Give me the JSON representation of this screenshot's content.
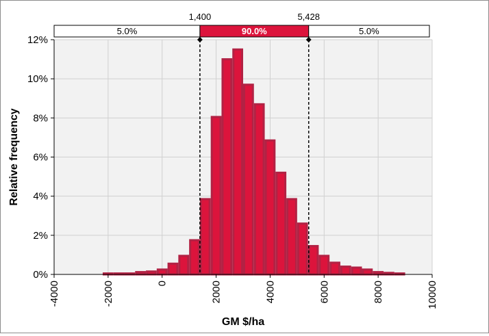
{
  "chart_data": {
    "type": "bar",
    "xlabel": "GM $/ha",
    "ylabel": "Relative frequency",
    "xlim": [
      -4000,
      10000
    ],
    "ylim": [
      0,
      12
    ],
    "x_ticks": [
      "-4000",
      "-2000",
      "0",
      "2000",
      "4000",
      "6000",
      "8000",
      "10000"
    ],
    "y_ticks": [
      "0%",
      "2%",
      "4%",
      "6%",
      "8%",
      "10%",
      "12%"
    ],
    "grid": true,
    "bin_width": 400,
    "x": [
      -2000,
      -1600,
      -1200,
      -800,
      -400,
      0,
      400,
      800,
      1200,
      1600,
      2000,
      2400,
      2800,
      3200,
      3600,
      4000,
      4400,
      4800,
      5200,
      5600,
      6000,
      6400,
      6800,
      7200,
      7600,
      8000,
      8400,
      8800
    ],
    "values": [
      0.05,
      0.05,
      0.05,
      0.12,
      0.15,
      0.25,
      0.55,
      0.95,
      1.75,
      3.85,
      8.05,
      11.0,
      11.5,
      9.7,
      8.7,
      6.85,
      5.2,
      3.85,
      2.6,
      1.45,
      0.95,
      0.6,
      0.4,
      0.35,
      0.25,
      0.12,
      0.08,
      0.05
    ],
    "bar_color": "#dc143c",
    "bar_edge_color": "#b22244",
    "plot_background": "#f2f2f2",
    "percentile_bar": {
      "lower_value": 1400,
      "upper_value": 5428,
      "lower_label": "1,400",
      "upper_label": "5,428",
      "segments": [
        {
          "label": "5.0%",
          "fill": "#ffffff",
          "text_color": "#000000"
        },
        {
          "label": "90.0%",
          "fill": "#dc143c",
          "text_color": "#ffffff"
        },
        {
          "label": "5.0%",
          "fill": "#ffffff",
          "text_color": "#000000"
        }
      ]
    }
  }
}
